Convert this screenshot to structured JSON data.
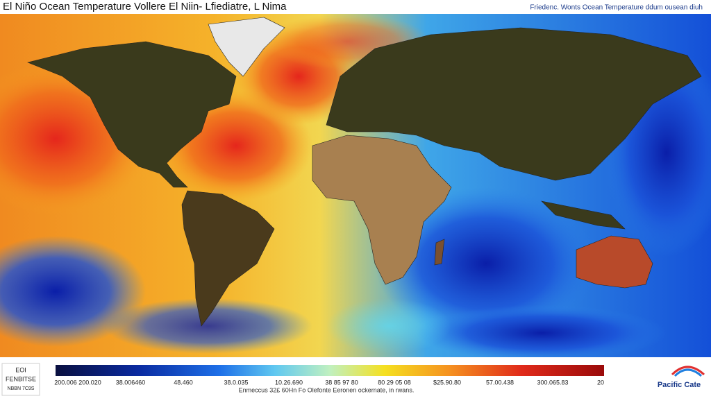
{
  "header": {
    "title": "El Niño Ocean Temperature Vollere El Niin- Lfiediatre, L Nima",
    "subtitle": "Friedenc. Wonts Ocean Temperature ddum ousean diuh"
  },
  "legend": {
    "box_lines": [
      "EOI",
      "FENBITSE",
      "NBBN 7C9S"
    ],
    "scale_labels": [
      "200.006 200.020",
      "38.006460",
      "48.460",
      "38.0.035",
      "10.26.690",
      "38 85 97 80",
      "80 29 05 08",
      "$25.90.80",
      "57.00.438",
      "300.065.83",
      "20"
    ],
    "caption": "Enmeccus 32£ 60Hn Fo Olefonte Eeronen ockernate, in rwans."
  },
  "logo": {
    "name": "Pacific Cate"
  }
}
